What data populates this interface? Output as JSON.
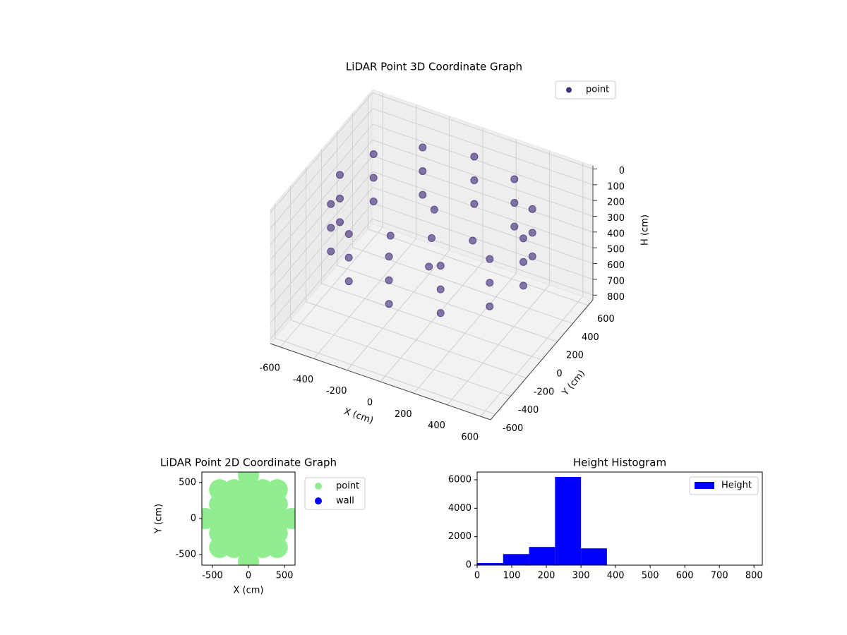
{
  "chart_data": [
    {
      "type": "scatter3d",
      "title": "LiDAR Point 3D Coordinate Graph",
      "xlabel": "X (cm)",
      "ylabel": "Y (cm)",
      "zlabel": "H (cm)",
      "xlim": [
        -660,
        660
      ],
      "ylim": [
        -660,
        660
      ],
      "zlim": [
        -20,
        830
      ],
      "zaxis_inverted": true,
      "xticks": [
        -600,
        -400,
        -200,
        0,
        200,
        400,
        600
      ],
      "yticks": [
        -600,
        -400,
        -200,
        0,
        200,
        400,
        600
      ],
      "zticks": [
        0,
        100,
        200,
        300,
        400,
        500,
        600,
        700,
        800
      ],
      "legend": "upper right",
      "series": [
        {
          "name": "point",
          "color": "#46337e",
          "x": [
            550,
            476,
            275,
            0,
            -275,
            -476,
            -550,
            -476,
            -275,
            0,
            275,
            476,
            550,
            476,
            275,
            0,
            -275,
            -476,
            -550,
            -476,
            -275,
            0,
            275,
            476,
            550,
            476,
            275,
            0,
            -275,
            -476,
            -550,
            -476,
            -275,
            0,
            275,
            476,
            0,
            200,
            -200,
            100,
            -100
          ],
          "y": [
            0,
            275,
            476,
            550,
            476,
            275,
            0,
            -275,
            -476,
            -550,
            -476,
            -275,
            0,
            275,
            476,
            550,
            476,
            275,
            0,
            -275,
            -476,
            -550,
            -476,
            -275,
            0,
            275,
            476,
            550,
            476,
            275,
            0,
            -275,
            -476,
            -550,
            -476,
            -275,
            0,
            100,
            -100,
            -250,
            250
          ],
          "z": [
            100,
            100,
            100,
            100,
            100,
            100,
            100,
            100,
            100,
            100,
            100,
            100,
            250,
            250,
            250,
            250,
            250,
            250,
            250,
            250,
            250,
            250,
            250,
            250,
            400,
            400,
            400,
            400,
            400,
            400,
            400,
            400,
            400,
            400,
            400,
            400,
            300,
            300,
            300,
            300,
            300
          ]
        }
      ]
    },
    {
      "type": "scatter",
      "title": "LiDAR Point 2D Coordinate Graph",
      "xlabel": "X (cm)",
      "ylabel": "Y (cm)",
      "xlim": [
        -647,
        647
      ],
      "ylim": [
        -645,
        645
      ],
      "xticks": [
        -500,
        0,
        500
      ],
      "yticks": [
        -500,
        0,
        500
      ],
      "legend": "outside upper left",
      "series": [
        {
          "name": "point",
          "color": "#90ee90",
          "x": [
            0,
            0,
            0,
            0,
            0,
            0,
            0,
            200,
            200,
            200,
            200,
            200,
            -200,
            -200,
            -200,
            -200,
            -200,
            400,
            400,
            400,
            400,
            400,
            -400,
            -400,
            -400,
            -400,
            -400,
            600,
            -600
          ],
          "y": [
            -600,
            -400,
            -200,
            0,
            200,
            400,
            600,
            -400,
            -200,
            0,
            200,
            400,
            -400,
            -200,
            0,
            200,
            400,
            -400,
            -200,
            0,
            200,
            400,
            -400,
            -200,
            0,
            200,
            400,
            0,
            0
          ]
        },
        {
          "name": "wall",
          "color": "#0000ff",
          "x": [],
          "y": []
        }
      ]
    },
    {
      "type": "histogram",
      "title": "Height Histogram",
      "bins": [
        0,
        75,
        150,
        225,
        300,
        375,
        450,
        525,
        600,
        675,
        750,
        825
      ],
      "series": [
        {
          "name": "Height",
          "color": "#0000ff",
          "values": [
            150,
            780,
            1280,
            6200,
            1180,
            10,
            5,
            5,
            5,
            5,
            5
          ]
        }
      ],
      "xlim": [
        0,
        824
      ],
      "ylim": [
        0,
        6545
      ],
      "xticks": [
        0,
        100,
        200,
        300,
        400,
        500,
        600,
        700,
        800
      ],
      "yticks": [
        0,
        2000,
        4000,
        6000
      ],
      "legend": "upper right"
    }
  ]
}
